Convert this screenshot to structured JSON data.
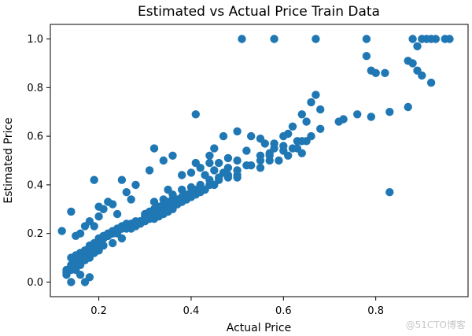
{
  "chart_data": {
    "type": "scatter",
    "title": "Estimated vs Actual Price Train Data",
    "xlabel": "Actual Price",
    "ylabel": "Estimated Price",
    "xlim": [
      0.095,
      1.0
    ],
    "ylim": [
      -0.06,
      1.06
    ],
    "xticks": [
      "0.2",
      "0.4",
      "0.6",
      "0.8"
    ],
    "xtick_values": [
      0.2,
      0.4,
      0.6,
      0.8
    ],
    "yticks": [
      "0.0",
      "0.2",
      "0.4",
      "0.6",
      "0.8",
      "1.0"
    ],
    "ytick_values": [
      0.0,
      0.2,
      0.4,
      0.6,
      0.8,
      1.0
    ],
    "grid": false,
    "color": "#1f77b4",
    "series": [
      {
        "x": [
          0.51,
          0.58,
          0.67,
          0.78,
          0.88,
          0.9,
          0.91,
          0.92,
          0.93,
          0.95,
          0.96,
          0.89,
          0.78,
          0.79,
          0.8,
          0.82,
          0.87,
          0.88,
          0.89,
          0.9,
          0.87,
          0.92,
          0.79,
          0.83,
          0.76,
          0.73,
          0.72,
          0.68,
          0.66,
          0.67,
          0.64,
          0.65,
          0.62,
          0.61,
          0.6,
          0.58,
          0.56,
          0.55,
          0.53,
          0.5,
          0.47,
          0.45,
          0.44,
          0.66,
          0.65,
          0.63,
          0.62,
          0.6,
          0.58,
          0.57,
          0.55,
          0.52,
          0.5,
          0.48,
          0.46,
          0.44,
          0.42,
          0.4,
          0.38,
          0.68,
          0.64,
          0.6,
          0.57,
          0.55,
          0.52,
          0.5,
          0.48,
          0.46,
          0.44,
          0.42,
          0.4,
          0.38,
          0.36,
          0.34,
          0.32,
          0.5,
          0.48,
          0.46,
          0.44,
          0.42,
          0.41,
          0.4,
          0.39,
          0.38,
          0.37,
          0.36,
          0.35,
          0.34,
          0.33,
          0.32,
          0.31,
          0.3,
          0.45,
          0.43,
          0.41,
          0.4,
          0.39,
          0.38,
          0.37,
          0.36,
          0.35,
          0.34,
          0.33,
          0.32,
          0.31,
          0.3,
          0.29,
          0.28,
          0.27,
          0.42,
          0.4,
          0.38,
          0.36,
          0.34,
          0.32,
          0.3,
          0.28,
          0.26,
          0.25,
          0.24,
          0.23,
          0.22,
          0.21,
          0.2,
          0.39,
          0.37,
          0.35,
          0.33,
          0.31,
          0.29,
          0.27,
          0.25,
          0.24,
          0.23,
          0.22,
          0.21,
          0.2,
          0.19,
          0.18,
          0.35,
          0.33,
          0.31,
          0.29,
          0.27,
          0.26,
          0.25,
          0.24,
          0.23,
          0.22,
          0.21,
          0.2,
          0.19,
          0.18,
          0.17,
          0.16,
          0.3,
          0.28,
          0.26,
          0.24,
          0.22,
          0.21,
          0.2,
          0.19,
          0.18,
          0.17,
          0.16,
          0.15,
          0.14,
          0.25,
          0.23,
          0.21,
          0.2,
          0.19,
          0.18,
          0.17,
          0.16,
          0.15,
          0.14,
          0.13,
          0.2,
          0.19,
          0.18,
          0.17,
          0.16,
          0.15,
          0.14,
          0.13,
          0.12,
          0.18,
          0.17,
          0.16,
          0.15,
          0.14,
          0.13,
          0.14,
          0.15,
          0.16,
          0.17,
          0.18,
          0.19,
          0.2,
          0.21,
          0.22,
          0.26,
          0.28,
          0.25,
          0.23,
          0.32,
          0.36,
          0.34,
          0.41,
          0.45,
          0.48,
          0.53,
          0.57,
          0.61,
          0.64,
          0.83,
          0.41,
          0.31,
          0.19,
          0.24,
          0.2,
          0.27,
          0.35,
          0.43,
          0.47,
          0.5,
          0.55,
          0.59,
          0.63
        ],
        "y": [
          1.0,
          1.0,
          1.0,
          1.0,
          1.0,
          1.0,
          1.0,
          1.0,
          1.0,
          1.0,
          1.0,
          0.97,
          0.93,
          0.87,
          0.86,
          0.86,
          0.91,
          0.9,
          0.87,
          0.85,
          0.72,
          0.82,
          0.68,
          0.7,
          0.69,
          0.67,
          0.66,
          0.71,
          0.74,
          0.77,
          0.69,
          0.66,
          0.64,
          0.61,
          0.6,
          0.57,
          0.57,
          0.59,
          0.6,
          0.62,
          0.6,
          0.55,
          0.52,
          0.6,
          0.58,
          0.58,
          0.55,
          0.56,
          0.55,
          0.53,
          0.52,
          0.54,
          0.5,
          0.51,
          0.49,
          0.49,
          0.47,
          0.45,
          0.44,
          0.63,
          0.58,
          0.54,
          0.52,
          0.5,
          0.48,
          0.46,
          0.44,
          0.43,
          0.42,
          0.4,
          0.39,
          0.38,
          0.36,
          0.34,
          0.33,
          0.44,
          0.43,
          0.42,
          0.4,
          0.39,
          0.38,
          0.37,
          0.36,
          0.35,
          0.34,
          0.34,
          0.33,
          0.32,
          0.31,
          0.3,
          0.29,
          0.28,
          0.4,
          0.38,
          0.36,
          0.35,
          0.34,
          0.33,
          0.32,
          0.3,
          0.29,
          0.28,
          0.27,
          0.26,
          0.26,
          0.25,
          0.24,
          0.23,
          0.22,
          0.37,
          0.35,
          0.33,
          0.31,
          0.29,
          0.28,
          0.27,
          0.25,
          0.24,
          0.23,
          0.22,
          0.21,
          0.2,
          0.19,
          0.18,
          0.34,
          0.32,
          0.3,
          0.28,
          0.26,
          0.25,
          0.24,
          0.22,
          0.21,
          0.2,
          0.19,
          0.18,
          0.17,
          0.16,
          0.15,
          0.3,
          0.28,
          0.27,
          0.25,
          0.24,
          0.23,
          0.22,
          0.21,
          0.2,
          0.19,
          0.18,
          0.17,
          0.15,
          0.14,
          0.13,
          0.12,
          0.26,
          0.24,
          0.22,
          0.2,
          0.19,
          0.18,
          0.17,
          0.15,
          0.14,
          0.13,
          0.12,
          0.11,
          0.1,
          0.18,
          0.16,
          0.15,
          0.14,
          0.12,
          0.11,
          0.1,
          0.09,
          0.08,
          0.07,
          0.05,
          0.13,
          0.12,
          0.1,
          0.09,
          0.07,
          0.06,
          0.05,
          0.04,
          0.21,
          0.02,
          0.0,
          0.03,
          0.05,
          0.0,
          0.03,
          0.29,
          0.19,
          0.2,
          0.23,
          0.25,
          0.23,
          0.27,
          0.3,
          0.33,
          0.37,
          0.4,
          0.42,
          0.32,
          0.55,
          0.52,
          0.5,
          0.49,
          0.46,
          0.47,
          0.48,
          0.5,
          0.52,
          0.53,
          0.37,
          0.69,
          0.46,
          0.42,
          0.28,
          0.31,
          0.34,
          0.38,
          0.44,
          0.45,
          0.43,
          0.47,
          0.5,
          0.55
        ]
      }
    ]
  },
  "watermark": "@51CTO博客"
}
